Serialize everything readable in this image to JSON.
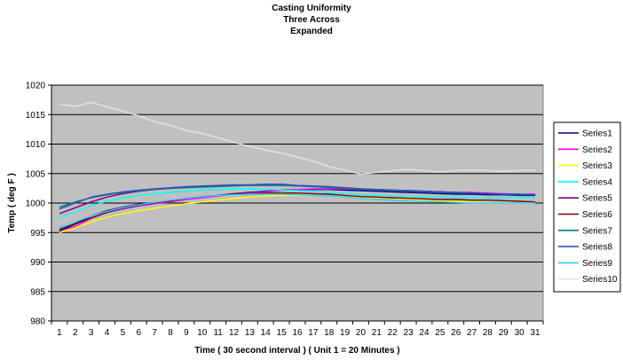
{
  "chart_data": {
    "type": "line",
    "title_lines": [
      "Casting Uniformity",
      "Three  Across",
      "Expanded"
    ],
    "xlabel": "Time ( 30 second interval ) ( Unit 1 = 20 Minutes )",
    "ylabel": "Temp ( deg F )",
    "ylim": [
      980,
      1020
    ],
    "y_ticks": [
      980,
      985,
      990,
      995,
      1000,
      1005,
      1010,
      1015,
      1020
    ],
    "grid": "horizontal",
    "legend_position": "right",
    "plot_background": "#c0c0c0",
    "categories": [
      "1",
      "2",
      "3",
      "4",
      "5",
      "6",
      "7",
      "8",
      "9",
      "10",
      "11",
      "12",
      "13",
      "14",
      "15",
      "16",
      "17",
      "18",
      "19",
      "20",
      "21",
      "22",
      "23",
      "24",
      "25",
      "26",
      "27",
      "28",
      "29",
      "30",
      "31"
    ],
    "series": [
      {
        "name": "Series1",
        "color": "#000080",
        "values": [
          995.5,
          996.5,
          997.8,
          998.7,
          999.3,
          999.8,
          1000.1,
          1000.4,
          1000.8,
          1001.0,
          1001.3,
          1001.6,
          1001.8,
          1002.0,
          1002.2,
          1002.3,
          1002.3,
          1002.3,
          1002.2,
          1002.1,
          1002.0,
          1001.9,
          1001.8,
          1001.7,
          1001.6,
          1001.5,
          1001.5,
          1001.4,
          1001.4,
          1001.3,
          1001.3
        ]
      },
      {
        "name": "Series2",
        "color": "#ff00ff",
        "values": [
          995.3,
          996.0,
          997.4,
          998.4,
          999.0,
          999.5,
          999.9,
          1000.2,
          1000.6,
          1000.9,
          1001.2,
          1001.5,
          1001.7,
          1001.9,
          1002.1,
          1002.3,
          1002.4,
          1002.4,
          1002.4,
          1002.3,
          1002.3,
          1002.2,
          1002.1,
          1002.0,
          1001.9,
          1001.8,
          1001.8,
          1001.7,
          1001.6,
          1001.5,
          1001.5
        ]
      },
      {
        "name": "Series3",
        "color": "#ffff00",
        "values": [
          995.0,
          995.8,
          996.8,
          997.6,
          998.2,
          998.7,
          999.1,
          999.5,
          999.9,
          1000.2,
          1000.5,
          1000.8,
          1001.0,
          1001.2,
          1001.3,
          1001.3,
          1001.3,
          1001.2,
          1001.1,
          1001.0,
          1000.9,
          1000.8,
          1000.6,
          1000.5,
          1000.4,
          1000.3,
          1000.2,
          1000.1,
          1000.0,
          1000.0,
          1000.0
        ]
      },
      {
        "name": "Series4",
        "color": "#00ffff",
        "values": [
          997.5,
          998.5,
          999.5,
          1000.3,
          1000.9,
          1001.3,
          1001.6,
          1001.8,
          1002.0,
          1002.2,
          1002.3,
          1002.4,
          1002.4,
          1002.3,
          1002.2,
          1002.1,
          1002.0,
          1001.8,
          1001.6,
          1001.4,
          1001.3,
          1001.2,
          1001.1,
          1001.0,
          1001.0,
          1000.9,
          1000.9,
          1000.9,
          1000.9,
          1000.9,
          1000.9
        ]
      },
      {
        "name": "Series5",
        "color": "#800080",
        "values": [
          998.2,
          999.2,
          1000.2,
          1001.0,
          1001.6,
          1002.0,
          1002.3,
          1002.5,
          1002.7,
          1002.8,
          1002.9,
          1003.0,
          1003.0,
          1003.0,
          1003.0,
          1002.9,
          1002.8,
          1002.7,
          1002.6,
          1002.4,
          1002.3,
          1002.2,
          1002.1,
          1002.0,
          1001.9,
          1001.8,
          1001.7,
          1001.6,
          1001.5,
          1001.5,
          1001.4
        ]
      },
      {
        "name": "Series6",
        "color": "#800000",
        "values": [
          995.2,
          996.4,
          997.5,
          998.4,
          999.1,
          999.6,
          1000.0,
          1000.4,
          1000.8,
          1001.1,
          1001.3,
          1001.5,
          1001.6,
          1001.7,
          1001.7,
          1001.7,
          1001.6,
          1001.5,
          1001.3,
          1001.1,
          1001.0,
          1000.9,
          1000.8,
          1000.7,
          1000.6,
          1000.6,
          1000.5,
          1000.5,
          1000.4,
          1000.3,
          1000.2
        ]
      },
      {
        "name": "Series7",
        "color": "#008080",
        "values": [
          999.3,
          1000.2,
          1000.9,
          1001.4,
          1001.8,
          1002.1,
          1002.3,
          1002.5,
          1002.6,
          1002.7,
          1002.8,
          1002.9,
          1003.0,
          1003.0,
          1003.0,
          1002.9,
          1002.8,
          1002.6,
          1002.5,
          1002.3,
          1002.2,
          1002.1,
          1002.0,
          1001.9,
          1001.8,
          1001.7,
          1001.7,
          1001.6,
          1001.5,
          1001.5,
          1001.4
        ]
      },
      {
        "name": "Series8",
        "color": "#3050c0",
        "values": [
          999.0,
          1000.0,
          1001.0,
          1001.5,
          1001.9,
          1002.2,
          1002.4,
          1002.6,
          1002.8,
          1002.9,
          1003.0,
          1003.1,
          1003.1,
          1003.2,
          1003.2,
          1003.0,
          1002.9,
          1002.8,
          1002.6,
          1002.4,
          1002.3,
          1002.2,
          1002.1,
          1002.0,
          1001.9,
          1001.8,
          1001.7,
          1001.6,
          1001.5,
          1001.4,
          1001.4
        ]
      },
      {
        "name": "Series9",
        "color": "#33ccff",
        "values": [
          995.8,
          996.8,
          997.8,
          998.6,
          999.2,
          999.7,
          1000.1,
          1000.5,
          1000.8,
          1001.1,
          1001.3,
          1001.4,
          1001.5,
          1001.5,
          1001.5,
          1001.4,
          1001.3,
          1001.2,
          1001.0,
          1000.8,
          1000.6,
          1000.5,
          1000.4,
          1000.3,
          1000.2,
          1000.1,
          1000.0,
          1000.0,
          1000.0,
          1000.0,
          1000.0
        ]
      },
      {
        "name": "Series10",
        "color": "#dde6ee",
        "values": [
          1016.8,
          1016.4,
          1017.1,
          1016.3,
          1015.6,
          1014.8,
          1013.8,
          1013.2,
          1012.3,
          1011.8,
          1011.1,
          1010.3,
          1009.6,
          1009.0,
          1008.5,
          1007.8,
          1007.1,
          1006.2,
          1005.6,
          1004.9,
          1005.2,
          1005.5,
          1005.7,
          1005.5,
          1005.3,
          1005.5,
          1005.6,
          1005.5,
          1005.4,
          1005.5,
          1005.6
        ]
      }
    ]
  }
}
